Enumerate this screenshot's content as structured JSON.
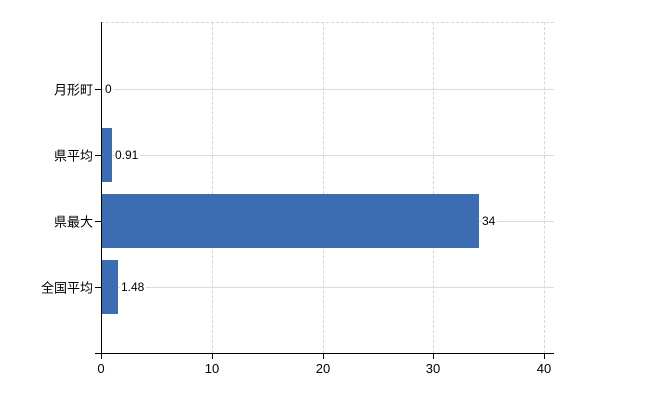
{
  "chart_data": {
    "type": "bar",
    "orientation": "horizontal",
    "title": "",
    "categories": [
      "月形町",
      "県平均",
      "県最大",
      "全国平均"
    ],
    "values": [
      0,
      0.91,
      34,
      1.48
    ],
    "value_labels": [
      "0",
      "0.91",
      "34",
      "1.48"
    ],
    "x_tick_labels": [
      "0",
      "10",
      "20",
      "30",
      "40"
    ],
    "x_tick_values": [
      0,
      10,
      20,
      30,
      40
    ],
    "xlim": [
      0,
      40
    ],
    "grid": true,
    "legend": false,
    "bar_color": "#3c6db3",
    "hgrid_color": "#d9ded9",
    "vgrid_color": "#d6d6d6",
    "axis_color": "#000000",
    "text_color": "#000000",
    "background": "#ffffff"
  }
}
